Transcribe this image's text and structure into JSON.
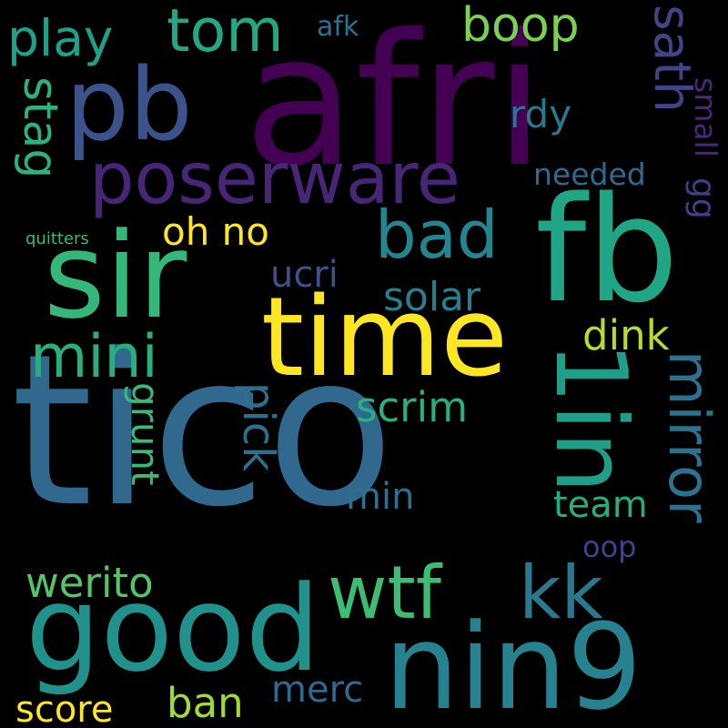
{
  "words": [
    {
      "text": "afri",
      "color": "#440154"
    },
    {
      "text": "tico",
      "color": "#31688e"
    },
    {
      "text": "good",
      "color": "#21918c"
    },
    {
      "text": "nin9",
      "color": "#26828e"
    },
    {
      "text": "fb",
      "color": "#21a685"
    },
    {
      "text": "time",
      "color": "#fde725"
    },
    {
      "text": "sir",
      "color": "#35b779"
    },
    {
      "text": "pb",
      "color": "#3b528b"
    },
    {
      "text": "poserware",
      "color": "#482677"
    },
    {
      "text": "1in",
      "color": "#1f9e89"
    },
    {
      "text": "wtf",
      "color": "#3dbc74"
    },
    {
      "text": "kk",
      "color": "#2a788e"
    },
    {
      "text": "bad",
      "color": "#25858e"
    },
    {
      "text": "tom",
      "color": "#22a884"
    },
    {
      "text": "mini",
      "color": "#29af7f"
    },
    {
      "text": "mirror",
      "color": "#2c728e"
    },
    {
      "text": "play",
      "color": "#1fa088"
    },
    {
      "text": "sath",
      "color": "#414487"
    },
    {
      "text": "boop",
      "color": "#7ad151"
    },
    {
      "text": "stag",
      "color": "#2db27d"
    },
    {
      "text": "werito",
      "color": "#52c569"
    },
    {
      "text": "ban",
      "color": "#a0da39"
    },
    {
      "text": "score",
      "color": "#fde725"
    },
    {
      "text": "merc",
      "color": "#31688e"
    },
    {
      "text": "grunt",
      "color": "#3aba76"
    },
    {
      "text": "pick",
      "color": "#2d708e"
    },
    {
      "text": "scrim",
      "color": "#2ab07f"
    },
    {
      "text": "oh no",
      "color": "#fde725"
    },
    {
      "text": "solar",
      "color": "#277f8e"
    },
    {
      "text": "ucri",
      "color": "#3b528b"
    },
    {
      "text": "dink",
      "color": "#b5de2b"
    },
    {
      "text": "team",
      "color": "#26ad81"
    },
    {
      "text": "min",
      "color": "#2e6f8e"
    },
    {
      "text": "rdy",
      "color": "#2a788e"
    },
    {
      "text": "needed",
      "color": "#31688e"
    },
    {
      "text": "small",
      "color": "#482878"
    },
    {
      "text": "gg",
      "color": "#433e85"
    },
    {
      "text": "oop",
      "color": "#414487"
    },
    {
      "text": "afk",
      "color": "#2c728e"
    },
    {
      "text": "quitters",
      "color": "#3aba76"
    }
  ]
}
